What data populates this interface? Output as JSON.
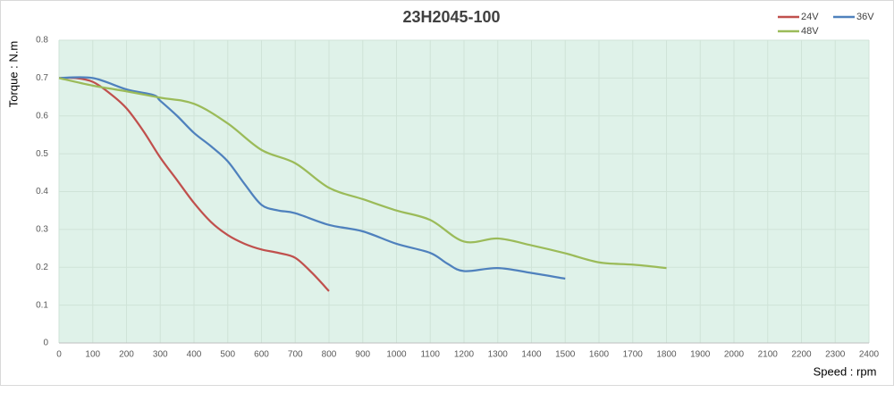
{
  "chart_data": {
    "type": "line",
    "title": "23H2045-100",
    "x_label": "Speed : rpm",
    "y_label": "Torque : N.m",
    "xlim": [
      0,
      2400
    ],
    "xticks": [
      0,
      100,
      200,
      300,
      400,
      500,
      600,
      700,
      800,
      900,
      1000,
      1100,
      1200,
      1300,
      1400,
      1500,
      1600,
      1700,
      1800,
      1900,
      2000,
      2100,
      2200,
      2300,
      2400
    ],
    "ylim": [
      0,
      0.8
    ],
    "yticks": [
      0,
      0.1,
      0.2,
      0.3,
      0.4,
      0.5,
      0.6,
      0.7,
      0.8
    ],
    "grid": true,
    "legend": "top-right",
    "series": [
      {
        "name": "24V",
        "color": "#c0504d",
        "x": [
          0,
          50,
          100,
          150,
          200,
          250,
          300,
          350,
          400,
          450,
          500,
          550,
          600,
          650,
          700,
          750,
          800
        ],
        "values": [
          0.7,
          0.7,
          0.69,
          0.66,
          0.62,
          0.56,
          0.49,
          0.43,
          0.37,
          0.32,
          0.285,
          0.262,
          0.247,
          0.238,
          0.225,
          0.185,
          0.137
        ]
      },
      {
        "name": "36V",
        "color": "#4f81bd",
        "x": [
          0,
          100,
          200,
          280,
          300,
          350,
          400,
          450,
          500,
          550,
          600,
          650,
          700,
          800,
          900,
          1000,
          1100,
          1150,
          1200,
          1300,
          1400,
          1500
        ],
        "values": [
          0.7,
          0.7,
          0.67,
          0.655,
          0.64,
          0.6,
          0.555,
          0.52,
          0.48,
          0.42,
          0.365,
          0.35,
          0.343,
          0.312,
          0.295,
          0.262,
          0.238,
          0.21,
          0.19,
          0.198,
          0.185,
          0.17
        ]
      },
      {
        "name": "48V",
        "color": "#9bbb59",
        "x": [
          0,
          100,
          200,
          300,
          400,
          500,
          600,
          700,
          800,
          900,
          1000,
          1100,
          1200,
          1300,
          1400,
          1500,
          1600,
          1700,
          1800
        ],
        "values": [
          0.7,
          0.68,
          0.665,
          0.648,
          0.632,
          0.58,
          0.51,
          0.475,
          0.41,
          0.38,
          0.35,
          0.325,
          0.268,
          0.276,
          0.258,
          0.237,
          0.213,
          0.207,
          0.198
        ]
      }
    ]
  }
}
